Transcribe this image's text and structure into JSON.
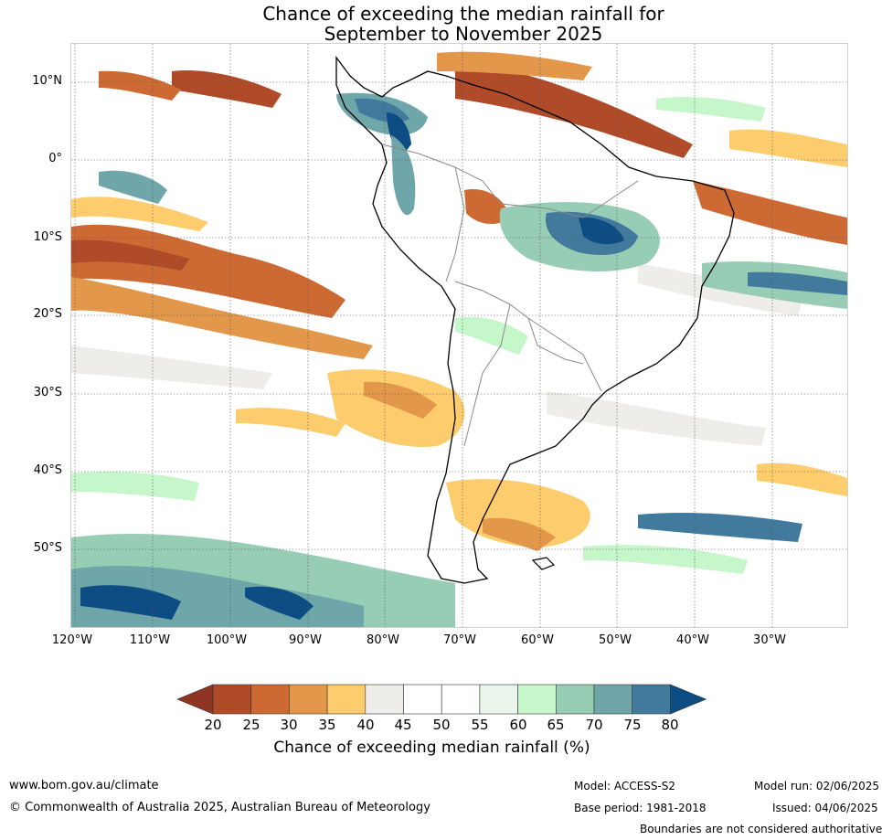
{
  "title_line1": "Chance of exceeding the median rainfall for",
  "title_line2": "September to November 2025",
  "lat_labels": [
    "10°N",
    "0°",
    "10°S",
    "20°S",
    "30°S",
    "40°S",
    "50°S"
  ],
  "lon_labels": [
    "120°W",
    "110°W",
    "100°W",
    "90°W",
    "80°W",
    "70°W",
    "60°W",
    "50°W",
    "40°W",
    "30°W"
  ],
  "colorbar": {
    "ticks": [
      "20",
      "25",
      "30",
      "35",
      "40",
      "45",
      "50",
      "55",
      "60",
      "65",
      "70",
      "75",
      "80"
    ],
    "colors": [
      "#8e3524",
      "#b04b2a",
      "#cd6a34",
      "#e3974a",
      "#fdcc6c",
      "#efedea",
      "#ffffff",
      "#ffffff",
      "#e9f5ea",
      "#c6f7cb",
      "#98cdb5",
      "#6ea6a9",
      "#427a9d",
      "#0d4d84"
    ],
    "label": "Chance of exceeding median rainfall (%)"
  },
  "footer": {
    "url": "www.bom.gov.au/climate",
    "copyright": "© Commonwealth of Australia 2025, Australian Bureau of Meteorology",
    "model": "Model: ACCESS-S2",
    "base_period": "Base period: 1981-2018",
    "model_run": "Model run: 02/06/2025",
    "issued": "Issued: 04/06/2025",
    "disclaimer": "Boundaries are not considered authoritative"
  }
}
